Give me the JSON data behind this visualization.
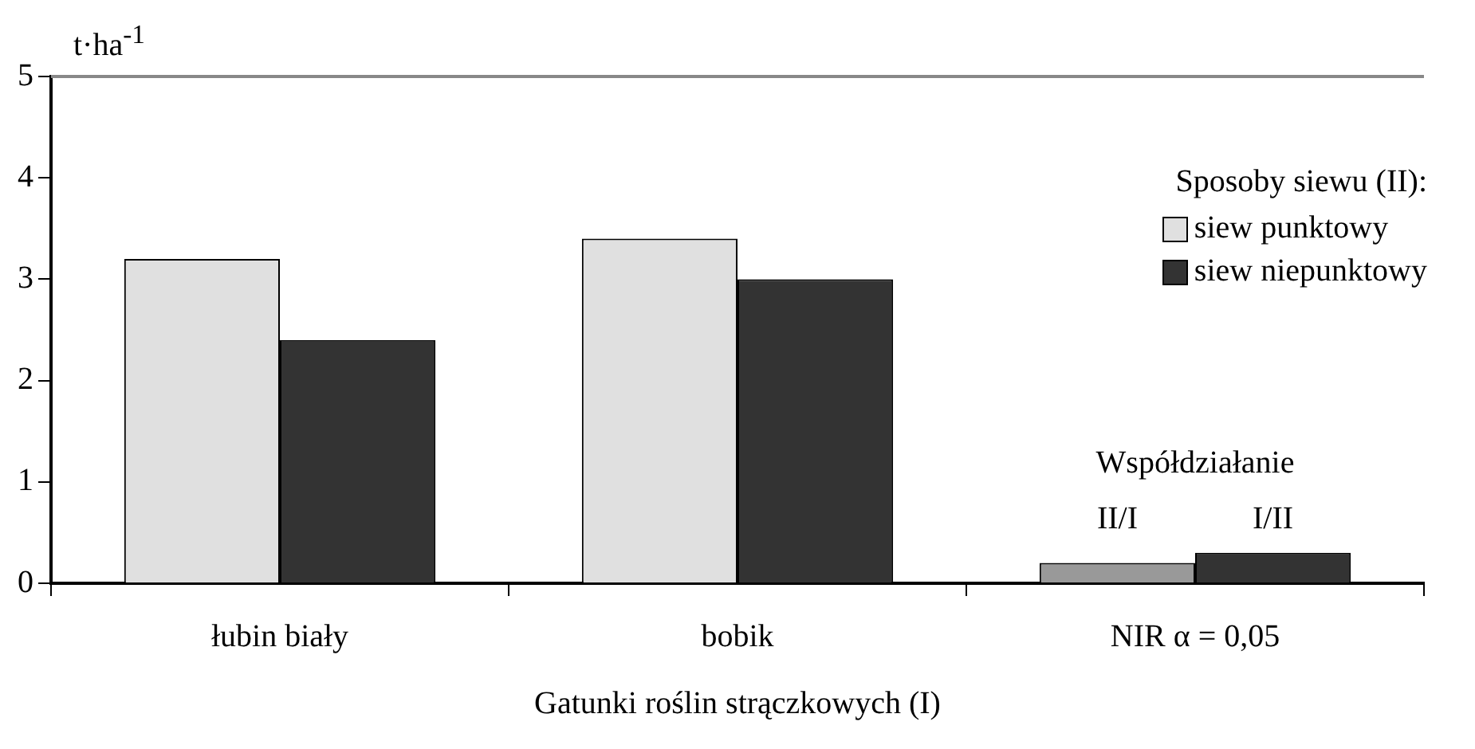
{
  "chart_data": {
    "type": "bar",
    "ylabel": "t·ha$^{-1}$",
    "xlabel": "Gatunki roślin strączkowych (I)",
    "legend_title": "Sposoby siewu (II):",
    "legend": "top right",
    "grid": false,
    "categories": [
      "łubin biały",
      "bobik",
      "NIR α = 0,05"
    ],
    "series": [
      {
        "name": "siew punktowy",
        "color": "#e0e0e0",
        "colors": [
          "#e0e0e0",
          "#e0e0e0",
          "#999999"
        ],
        "values": [
          3.2,
          3.4,
          0.2
        ]
      },
      {
        "name": "siew niepunktowy",
        "color": "#333333",
        "colors": [
          "#333333",
          "#333333",
          "#333333"
        ],
        "values": [
          2.4,
          3.0,
          0.3
        ]
      }
    ],
    "ylim": [
      0,
      5
    ],
    "yticks": [
      0,
      1,
      2,
      3,
      4,
      5
    ],
    "annotations": [
      "Współdziałanie",
      "II/I",
      "I/II"
    ]
  }
}
